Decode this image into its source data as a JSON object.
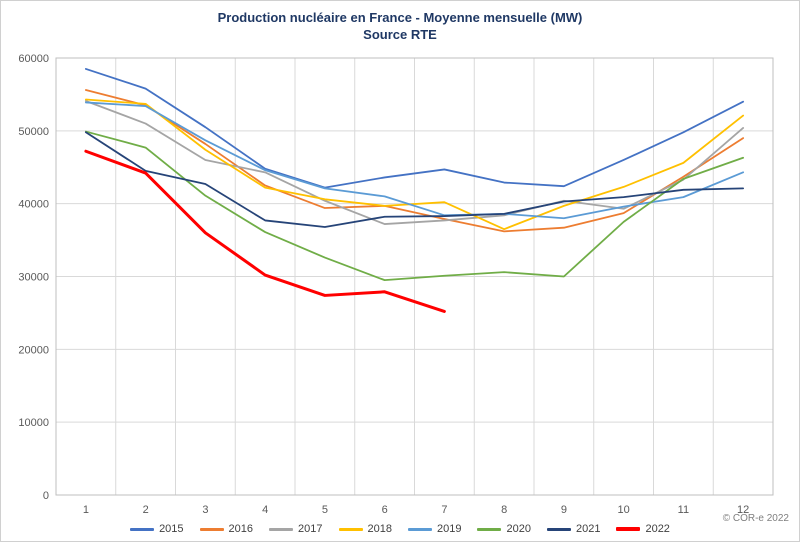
{
  "chart_data": {
    "type": "line",
    "title": "Production nucléaire en France - Moyenne mensuelle (MW)",
    "subtitle": "Source RTE",
    "xlabel": "",
    "ylabel": "",
    "categories": [
      "1",
      "2",
      "3",
      "4",
      "5",
      "6",
      "7",
      "8",
      "9",
      "10",
      "11",
      "12"
    ],
    "ylim": [
      0,
      60000
    ],
    "ytick_step": 10000,
    "grid": true,
    "legend_position": "bottom",
    "series": [
      {
        "name": "2015",
        "color": "#4472C4",
        "values": [
          58500,
          55800,
          50500,
          44800,
          42200,
          43600,
          44700,
          42900,
          42400,
          46000,
          49800,
          54000
        ]
      },
      {
        "name": "2016",
        "color": "#ED7D31",
        "values": [
          55600,
          53500,
          48200,
          42500,
          39400,
          39700,
          37900,
          36200,
          36700,
          38700,
          43700,
          49000
        ]
      },
      {
        "name": "2017",
        "color": "#A5A5A5",
        "values": [
          54100,
          51000,
          46000,
          44300,
          40400,
          37200,
          37700,
          38400,
          40400,
          39300,
          43300,
          50400
        ]
      },
      {
        "name": "2018",
        "color": "#FFC000",
        "values": [
          54300,
          53700,
          47400,
          42200,
          40600,
          39700,
          40200,
          36500,
          39700,
          42300,
          45600,
          52100
        ]
      },
      {
        "name": "2019",
        "color": "#5B9BD5",
        "values": [
          53900,
          53400,
          48700,
          44600,
          42100,
          41000,
          38400,
          38600,
          38000,
          39600,
          40900,
          44300
        ]
      },
      {
        "name": "2020",
        "color": "#70AD47",
        "values": [
          49900,
          47700,
          41100,
          36100,
          32600,
          29500,
          30100,
          30600,
          30000,
          37500,
          43400,
          46300
        ]
      },
      {
        "name": "2021",
        "color": "#264478",
        "values": [
          49800,
          44500,
          42700,
          37700,
          36800,
          38200,
          38300,
          38600,
          40300,
          40900,
          41900,
          42100
        ]
      },
      {
        "name": "2022",
        "color": "#FF0000",
        "thick": true,
        "values": [
          47200,
          44200,
          36000,
          30200,
          27400,
          27900,
          25200
        ]
      }
    ]
  },
  "copyright": "© COR-e 2022"
}
